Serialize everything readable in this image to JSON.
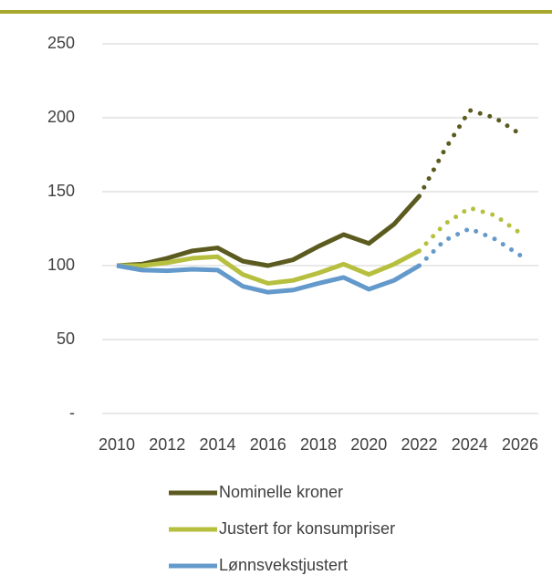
{
  "chart_data": {
    "type": "line",
    "x": [
      2010,
      2011,
      2012,
      2013,
      2014,
      2015,
      2016,
      2017,
      2018,
      2019,
      2020,
      2021,
      2022,
      2023,
      2024,
      2025,
      2026
    ],
    "series": [
      {
        "name": "Nominelle kroner",
        "color": "#5b5a1f",
        "values": [
          100,
          101,
          105,
          110,
          112,
          103,
          100,
          104,
          113,
          121,
          115,
          128,
          147,
          178,
          205,
          200,
          189
        ]
      },
      {
        "name": "Justert for konsumpriser",
        "color": "#b7bf3e",
        "values": [
          100,
          100,
          102,
          105,
          106,
          94,
          88,
          90,
          95,
          101,
          94,
          101,
          110,
          128,
          139,
          134,
          122
        ]
      },
      {
        "name": "Lønnsvekstjustert",
        "color": "#6399cb",
        "values": [
          100,
          97,
          96.5,
          97.5,
          97,
          86,
          82,
          83.5,
          88,
          92,
          84,
          90,
          100,
          117,
          125,
          118,
          107
        ]
      }
    ],
    "dotted_from_x": 2022,
    "xlim": [
      2010,
      2026
    ],
    "xticks": [
      2010,
      2012,
      2014,
      2016,
      2018,
      2020,
      2022,
      2024,
      2026
    ],
    "ylim": [
      0,
      250
    ],
    "yticks": [
      {
        "value": 0,
        "label": "-"
      },
      50,
      100,
      150,
      200,
      250
    ],
    "grid": true,
    "legend": "bottom"
  }
}
